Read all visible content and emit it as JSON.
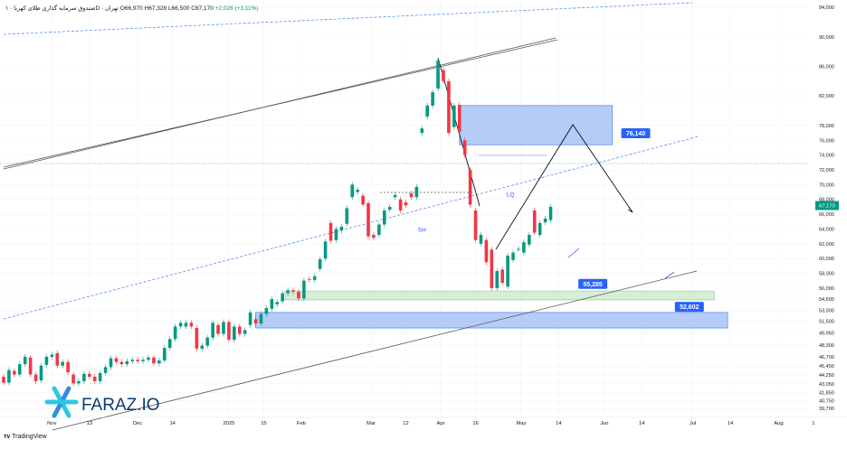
{
  "chart_data": {
    "type": "candlestick",
    "legend": {
      "symbol": "صندوق سرمایه گذاری طلای کهربا · ۱D · تهران",
      "open": "O66,970",
      "high": "H67,328",
      "low": "L66,500",
      "close": "C67,170",
      "change": "+2,026 (+3.11%)"
    },
    "ylim": [
      38500,
      94500
    ],
    "xlim": [
      0,
      300
    ],
    "y_ticks": [
      39700,
      40750,
      41850,
      43050,
      44250,
      45450,
      46700,
      48300,
      49950,
      51500,
      53000,
      54500,
      56000,
      58000,
      60000,
      62000,
      64000,
      66000,
      68000,
      70000,
      72000,
      74000,
      76000,
      78000,
      82000,
      86000,
      90000,
      94000
    ],
    "x_ticks": [
      {
        "x": 18,
        "label": "Nov"
      },
      {
        "x": 32,
        "label": "13"
      },
      {
        "x": 50,
        "label": "Dec"
      },
      {
        "x": 63,
        "label": "14"
      },
      {
        "x": 84,
        "label": "2025"
      },
      {
        "x": 97,
        "label": "15"
      },
      {
        "x": 111,
        "label": "Feb"
      },
      {
        "x": 137,
        "label": "Mar"
      },
      {
        "x": 150,
        "label": "12"
      },
      {
        "x": 163,
        "label": "Apr"
      },
      {
        "x": 176,
        "label": "16"
      },
      {
        "x": 193,
        "label": "May"
      },
      {
        "x": 207,
        "label": "14"
      },
      {
        "x": 224,
        "label": "Jun"
      },
      {
        "x": 238,
        "label": "14"
      },
      {
        "x": 257,
        "label": "Jul"
      },
      {
        "x": 271,
        "label": "14"
      },
      {
        "x": 289,
        "label": "Aug"
      },
      {
        "x": 302,
        "label": "1"
      }
    ],
    "candles": [
      [
        0,
        44000,
        43200
      ],
      [
        2,
        43200,
        44900
      ],
      [
        4,
        44800,
        44300
      ],
      [
        6,
        44300,
        45700
      ],
      [
        8,
        45700,
        46700
      ],
      [
        10,
        46600,
        44300
      ],
      [
        12,
        44300,
        43400
      ],
      [
        14,
        43500,
        45500
      ],
      [
        16,
        45600,
        46700
      ],
      [
        18,
        46700,
        47000
      ],
      [
        20,
        47200,
        45500
      ],
      [
        22,
        45500,
        46000
      ],
      [
        24,
        46000,
        44600
      ],
      [
        26,
        44300,
        43100
      ],
      [
        28,
        43100,
        43400
      ],
      [
        30,
        43400,
        44400
      ],
      [
        32,
        44400,
        44000
      ],
      [
        34,
        44000,
        43400
      ],
      [
        36,
        43400,
        44500
      ],
      [
        38,
        44500,
        45300
      ],
      [
        40,
        45300,
        46500
      ],
      [
        42,
        46500,
        46000
      ],
      [
        44,
        46000,
        45700
      ],
      [
        46,
        45700,
        46100
      ],
      [
        48,
        46100,
        46300
      ],
      [
        50,
        46300,
        46100
      ],
      [
        52,
        46100,
        46300
      ],
      [
        54,
        46300,
        46600
      ],
      [
        56,
        46600,
        45800
      ],
      [
        58,
        45800,
        46200
      ],
      [
        60,
        46200,
        47900
      ],
      [
        62,
        47900,
        49100
      ],
      [
        64,
        49100,
        50800
      ],
      [
        66,
        50800,
        51300
      ],
      [
        68,
        50800,
        51300
      ],
      [
        70,
        51300,
        50800
      ],
      [
        72,
        50600,
        47800
      ],
      [
        74,
        47800,
        48200
      ],
      [
        76,
        48200,
        49300
      ],
      [
        78,
        49300,
        51300
      ],
      [
        80,
        51000,
        49800
      ],
      [
        82,
        49800,
        51400
      ],
      [
        84,
        51400,
        49000
      ],
      [
        86,
        49000,
        50800
      ],
      [
        88,
        50800,
        49800
      ],
      [
        90,
        49800,
        50300
      ],
      [
        92,
        51000,
        52700
      ],
      [
        94,
        51800,
        51200
      ],
      [
        96,
        51200,
        52500
      ],
      [
        98,
        52500,
        53300
      ],
      [
        100,
        53200,
        54500
      ],
      [
        102,
        53800,
        54100
      ],
      [
        104,
        54200,
        55300
      ],
      [
        106,
        55300,
        55700
      ],
      [
        108,
        55700,
        55500
      ],
      [
        110,
        55500,
        54600
      ],
      [
        112,
        54600,
        57000
      ],
      [
        114,
        57200,
        57100
      ],
      [
        116,
        57100,
        57600
      ],
      [
        118,
        58600,
        59900
      ],
      [
        120,
        60000,
        62300
      ],
      [
        122,
        64800,
        62400
      ],
      [
        124,
        62500,
        64000
      ],
      [
        126,
        63800,
        64300
      ],
      [
        128,
        64700,
        66800
      ],
      [
        130,
        68300,
        70000
      ],
      [
        132,
        69000,
        69300
      ],
      [
        134,
        68500,
        67300
      ],
      [
        136,
        67500,
        63000
      ],
      [
        138,
        63200,
        62800
      ],
      [
        140,
        63200,
        64600
      ],
      [
        142,
        64600,
        66500
      ],
      [
        144,
        66600,
        67000
      ],
      [
        146,
        68300,
        68600
      ],
      [
        148,
        68000,
        66500
      ],
      [
        150,
        67600,
        67200
      ],
      [
        152,
        68800,
        68300
      ],
      [
        154,
        68300,
        69700
      ],
      [
        156,
        77000,
        77600
      ],
      [
        158,
        79200,
        80700
      ],
      [
        160,
        80700,
        82500
      ],
      [
        162,
        83000,
        86800
      ],
      [
        164,
        85500,
        84000
      ],
      [
        166,
        84000,
        77000
      ],
      [
        168,
        77800,
        80700
      ],
      [
        170,
        80800,
        77200
      ],
      [
        172,
        76000,
        74000
      ],
      [
        174,
        72000,
        67300
      ],
      [
        176,
        66500,
        62500
      ],
      [
        178,
        62000,
        63200
      ],
      [
        180,
        62500,
        59500
      ],
      [
        182,
        61200,
        56000
      ],
      [
        184,
        56000,
        58300
      ],
      [
        186,
        58500,
        56700
      ],
      [
        188,
        56200,
        60400
      ],
      [
        190,
        59800,
        60800
      ],
      [
        192,
        61300,
        61300
      ],
      [
        194,
        60800,
        62200
      ],
      [
        196,
        61900,
        63200
      ],
      [
        198,
        66500,
        63500
      ],
      [
        200,
        63200,
        64800
      ],
      [
        202,
        64900,
        65400
      ],
      [
        204,
        65200,
        67000
      ]
    ],
    "annotations": [
      {
        "label": "LQ",
        "x": 189,
        "y": 68400
      },
      {
        "label": "SH",
        "x": 156,
        "y": 63600
      }
    ],
    "price_tags": [
      {
        "label": "76,140",
        "x": 231,
        "y": 76900,
        "color": "#2962ff"
      },
      {
        "label": "55,285",
        "x": 215,
        "y": 56500,
        "color": "#2962ff"
      },
      {
        "label": "52,602",
        "x": 251,
        "y": 53400,
        "color": "#2962ff"
      }
    ],
    "last_price": {
      "label": "67,170",
      "value": 67170,
      "color": "#089981"
    },
    "zones": [
      {
        "x1": 170,
        "x2": 227,
        "y_top": 80700,
        "y_bot": 75400,
        "color": "#5b8def"
      },
      {
        "x1": 105,
        "x2": 265,
        "y_top": 55600,
        "y_bot": 54400,
        "color": "#a5d6a7"
      },
      {
        "x1": 94,
        "x2": 270,
        "y_top": 52700,
        "y_bot": 50600,
        "color": "#5b8def"
      }
    ],
    "colors": {
      "up": "#089981",
      "down": "#f23645",
      "grid": "#f0f3fa",
      "axis_text": "#131722"
    }
  },
  "brand": {
    "watermark": "FARAZ.IO",
    "footer": "TradingView"
  }
}
